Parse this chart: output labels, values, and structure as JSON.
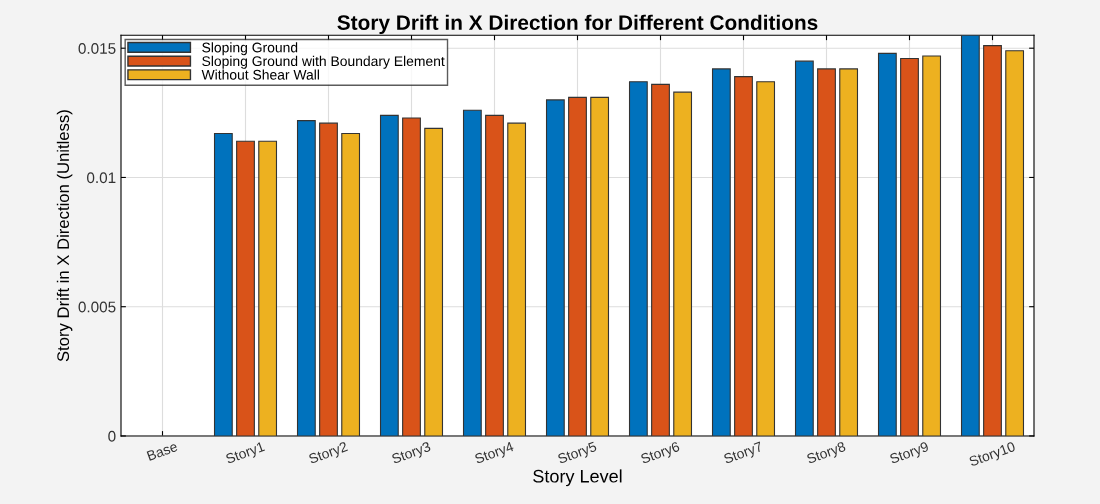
{
  "chart_data": {
    "type": "bar",
    "title": "Story Drift in X Direction for Different Conditions",
    "xlabel": "Story Level",
    "ylabel": "Story Drift in X Direction (Unitless)",
    "categories": [
      "Base",
      "Story1",
      "Story2",
      "Story3",
      "Story4",
      "Story5",
      "Story6",
      "Story7",
      "Story8",
      "Story9",
      "Story10"
    ],
    "series": [
      {
        "name": "Sloping Ground",
        "color": "#0072bd",
        "values": [
          null,
          0.0117,
          0.0122,
          0.0124,
          0.0126,
          0.013,
          0.0137,
          0.0142,
          0.0145,
          0.0148,
          0.0155
        ]
      },
      {
        "name": "Sloping Ground with Boundary Element",
        "color": "#d95319",
        "values": [
          null,
          0.0114,
          0.0121,
          0.0123,
          0.0124,
          0.0131,
          0.0136,
          0.0139,
          0.0142,
          0.0146,
          0.0151
        ]
      },
      {
        "name": "Without Shear Wall",
        "color": "#edb120",
        "values": [
          null,
          0.0114,
          0.0117,
          0.0119,
          0.0121,
          0.0131,
          0.0133,
          0.0137,
          0.0142,
          0.0147,
          0.0149
        ]
      }
    ],
    "ylim": [
      0,
      0.0155
    ],
    "yticks": [
      0,
      0.005,
      {
        "value": 0.01,
        "label": "0.01"
      },
      0.015
    ],
    "grid": true,
    "legend": "top left"
  }
}
